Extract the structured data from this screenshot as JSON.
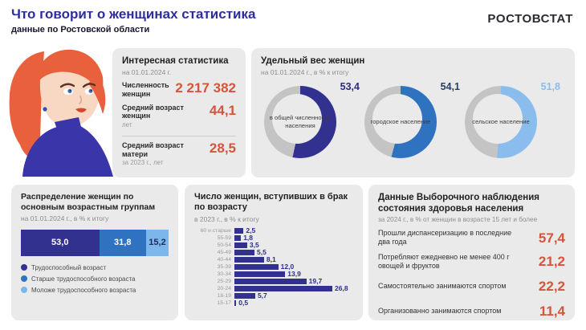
{
  "header": {
    "title": "Что говорит о женщинах статистика",
    "subtitle": "данные по Ростовской области",
    "logo": "РОСТОВСТАТ"
  },
  "colors": {
    "accent_orange": "#d5543a",
    "dark_indigo": "#33318f",
    "medium_blue": "#2e72c0",
    "light_blue": "#7cb6ea",
    "donut_rest": "#c4c4c4",
    "panel_bg": "#eaeaea",
    "title_navy": "#2d2da0"
  },
  "interesting_stats": {
    "title": "Интересная статистика",
    "subtitle": "на 01.01.2024 г.",
    "items": [
      {
        "label": "Численность женщин",
        "note": "",
        "value": "2 217 382"
      },
      {
        "label": "Средний возраст женщин",
        "note": "лет",
        "value": "44,1"
      },
      {
        "label": "Средний возраст матери",
        "note": "за 2023 г., лет",
        "value": "28,5"
      }
    ]
  },
  "share_of_women": {
    "title": "Удельный вес женщин",
    "subtitle": "на 01.01.2024 г., в % к итогу",
    "donuts": [
      {
        "label": "в общей численности населения",
        "value": 53.4,
        "value_text": "53,4",
        "color": "#33318f",
        "value_color": "#2b2d7d"
      },
      {
        "label": "городское население",
        "value": 54.1,
        "value_text": "54,1",
        "color": "#2e72c0",
        "value_color": "#2c3e60"
      },
      {
        "label": "сельское население",
        "value": 51.8,
        "value_text": "51,8",
        "color": "#8abded",
        "value_color": "#8abded"
      }
    ]
  },
  "age_groups": {
    "title": "Распределение женщин по основным возрастным группам",
    "subtitle": "на 01.01.2024 г., в % к итогу",
    "segments": [
      {
        "label": "Трудоспособный возраст",
        "value": 53.0,
        "value_text": "53,0",
        "color": "#33318f",
        "text_color": "#ffffff"
      },
      {
        "label": "Старше трудоспособного возраста",
        "value": 31.8,
        "value_text": "31,8",
        "color": "#2e72c0",
        "text_color": "#ffffff"
      },
      {
        "label": "Моложе трудоспособного возраста",
        "value": 15.2,
        "value_text": "15,2",
        "color": "#7cb6ea",
        "text_color": "#1c2a5e"
      }
    ]
  },
  "marriages": {
    "title": "Число женщин, вступивших в брак по возрасту",
    "subtitle": "в 2023 г., в % к итогу",
    "max_value": 26.8,
    "rows": [
      {
        "label": "60 и старше",
        "value": 2.5,
        "value_text": "2,5"
      },
      {
        "label": "55-59",
        "value": 1.8,
        "value_text": "1,8"
      },
      {
        "label": "50-54",
        "value": 3.5,
        "value_text": "3,5"
      },
      {
        "label": "45-49",
        "value": 5.5,
        "value_text": "5,5"
      },
      {
        "label": "40-44",
        "value": 8.1,
        "value_text": "8,1"
      },
      {
        "label": "35-39",
        "value": 12.0,
        "value_text": "12,0"
      },
      {
        "label": "30-34",
        "value": 13.9,
        "value_text": "13,9"
      },
      {
        "label": "25-29",
        "value": 19.7,
        "value_text": "19,7"
      },
      {
        "label": "20-24",
        "value": 26.8,
        "value_text": "26,8"
      },
      {
        "label": "18-19",
        "value": 5.7,
        "value_text": "5,7"
      },
      {
        "label": "15-17",
        "value": 0.5,
        "value_text": "0,5"
      }
    ]
  },
  "health": {
    "title": "Данные Выборочного наблюдения состояния здоровья населения",
    "subtitle": "за 2024 г., в % от женщин  в возрасте 15 лет  и более",
    "rows": [
      {
        "label": "Прошли  диспансеризацию  в последние два года",
        "value": "57,4"
      },
      {
        "label": "Потребляют  ежедневно не менее 400 г овощей и  фруктов",
        "value": "21,2"
      },
      {
        "label": "Самостоятельно  занимаются  спортом",
        "value": "22,2"
      },
      {
        "label": "Организованно  занимаются  спортом",
        "value": "11,4"
      }
    ]
  },
  "chart_data": [
    {
      "type": "pie",
      "title": "Удельный вес женщин",
      "subtitle": "на 01.01.2024 г., в % к итогу",
      "layout": "three donut charts, women share vs remainder, legend off",
      "series": [
        {
          "name": "в общей численности населения",
          "value": 53.4
        },
        {
          "name": "городское население",
          "value": 54.1
        },
        {
          "name": "сельское население",
          "value": 51.8
        }
      ]
    },
    {
      "type": "bar",
      "title": "Распределение женщин по основным возрастным группам",
      "subtitle": "на 01.01.2024 г., в % к итогу",
      "layout": "single horizontal 100% stacked bar, legend below",
      "categories": [
        "Трудоспособный возраст",
        "Старше трудоспособного возраста",
        "Моложе трудоспособного возраста"
      ],
      "values": [
        53.0,
        31.8,
        15.2
      ]
    },
    {
      "type": "bar",
      "title": "Число женщин, вступивших в брак по возрасту",
      "subtitle": "в 2023 г., в % к итогу",
      "layout": "horizontal bars, value labels at bar ends, grid off",
      "categories": [
        "60 и старше",
        "55-59",
        "50-54",
        "45-49",
        "40-44",
        "35-39",
        "30-34",
        "25-29",
        "20-24",
        "18-19",
        "15-17"
      ],
      "values": [
        2.5,
        1.8,
        3.5,
        5.5,
        8.1,
        12.0,
        13.9,
        19.7,
        26.8,
        5.7,
        0.5
      ],
      "xlim": [
        0,
        28
      ]
    }
  ]
}
